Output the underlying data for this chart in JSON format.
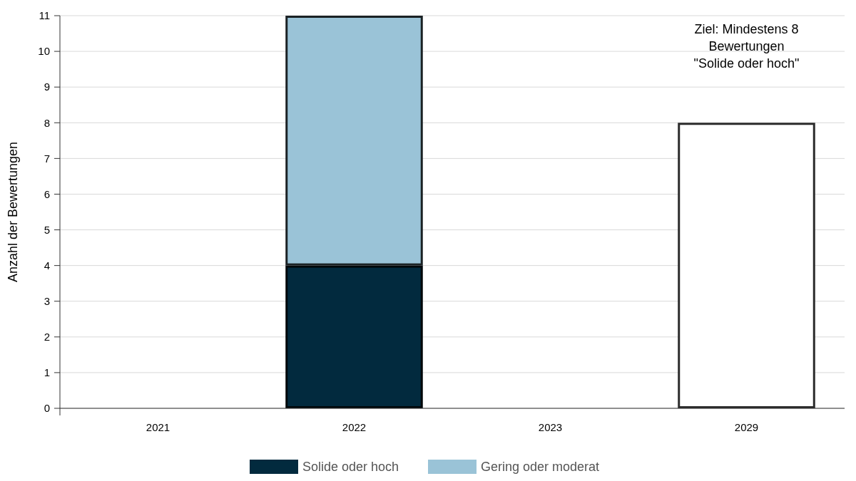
{
  "chart_data": {
    "type": "bar",
    "stacked": true,
    "ylabel": "Anzahl der Bewertungen",
    "categories": [
      "2021",
      "2022",
      "2023",
      "2029"
    ],
    "series": [
      {
        "name": "Solide oder hoch",
        "color": "#022a3e",
        "values": [
          null,
          4,
          null,
          null
        ]
      },
      {
        "name": "Gering oder moderat",
        "color": "#9ac3d7",
        "values": [
          null,
          7,
          null,
          null
        ]
      },
      {
        "color": "#ffffff",
        "values": [
          null,
          null,
          null,
          8
        ]
      }
    ],
    "ylim": [
      0,
      11
    ],
    "yticks": [
      0,
      1,
      2,
      3,
      4,
      5,
      6,
      7,
      8,
      9,
      10,
      11
    ],
    "grid": "y",
    "legend": "bottom",
    "annotations": [
      "Ziel: Mindestens 8\nBewertungen\n\"Solide oder hoch\""
    ]
  }
}
